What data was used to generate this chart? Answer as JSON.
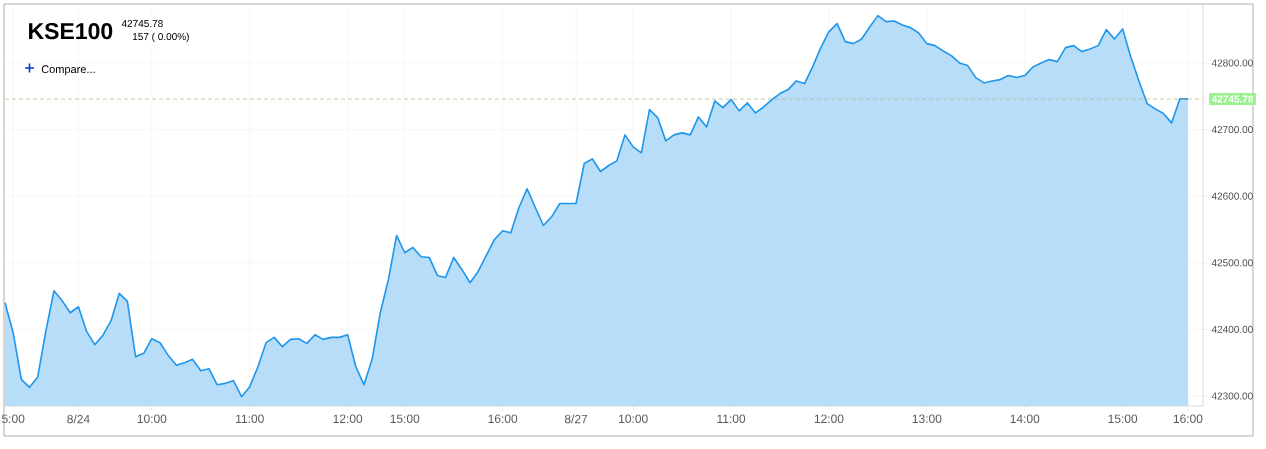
{
  "chart_data": {
    "type": "area",
    "title": "KSE100",
    "subtitle": "42745.78",
    "annotations": [
      "157 ( 0.00%)",
      "Compare..."
    ],
    "categories": [
      null,
      "5:00",
      null,
      null,
      null,
      null,
      null,
      null,
      null,
      "8/24",
      null,
      null,
      null,
      null,
      null,
      null,
      null,
      null,
      "10:00",
      null,
      null,
      null,
      null,
      null,
      null,
      null,
      null,
      null,
      null,
      null,
      "11:00",
      null,
      null,
      null,
      null,
      null,
      null,
      null,
      null,
      null,
      null,
      null,
      "12:00",
      null,
      null,
      null,
      null,
      null,
      null,
      "15:00",
      null,
      null,
      null,
      null,
      null,
      null,
      null,
      null,
      null,
      null,
      null,
      "16:00",
      null,
      null,
      null,
      null,
      null,
      null,
      null,
      null,
      "8/27",
      null,
      null,
      null,
      null,
      null,
      null,
      "10:00",
      null,
      null,
      null,
      null,
      null,
      null,
      null,
      null,
      null,
      null,
      null,
      "11:00",
      null,
      null,
      null,
      null,
      null,
      null,
      null,
      null,
      null,
      null,
      null,
      "12:00",
      null,
      null,
      null,
      null,
      null,
      null,
      null,
      null,
      null,
      null,
      null,
      "13:00",
      null,
      null,
      null,
      null,
      null,
      null,
      null,
      null,
      null,
      null,
      null,
      "14:00",
      null,
      null,
      null,
      null,
      null,
      null,
      null,
      null,
      null,
      null,
      null,
      "15:00",
      null,
      null,
      null,
      null,
      null,
      null,
      null,
      "16:00"
    ],
    "series": [
      {
        "color": "#1e96eb",
        "values": [
          42440,
          42395,
          42325,
          42313,
          42328,
          42397,
          42458,
          42443,
          42425,
          42434,
          42397,
          42377,
          42391,
          42413,
          42454,
          42442,
          42359,
          42364,
          42386,
          42380,
          42361,
          42346,
          42350,
          42355,
          42338,
          42341,
          42317,
          42319,
          42323,
          42299,
          42314,
          42344,
          42380,
          42388,
          42374,
          42385,
          42386,
          42379,
          42392,
          42385,
          42388,
          42388,
          42392,
          42344,
          42317,
          42355,
          42425,
          42475,
          42541,
          42515,
          42523,
          42509,
          42508,
          42481,
          42478,
          42508,
          42490,
          42470,
          42487,
          42511,
          42535,
          42548,
          42545,
          42583,
          42611,
          42583,
          42556,
          42569,
          42589,
          42589,
          42589,
          42649,
          42656,
          42637,
          42646,
          42653,
          42692,
          42674,
          42665,
          42730,
          42718,
          42683,
          42692,
          42695,
          42692,
          42719,
          42704,
          42743,
          42733,
          42745,
          42728,
          42740,
          42725,
          42734,
          42745,
          42754,
          42760,
          42773,
          42769,
          42794,
          42823,
          42847,
          42859,
          42832,
          42829,
          42836,
          42854,
          42871,
          42862,
          42863,
          42857,
          42853,
          42845,
          42829,
          42826,
          42818,
          42811,
          42800,
          42796,
          42778,
          42770,
          42773,
          42775,
          42781,
          42778,
          42781,
          42794,
          42800,
          42805,
          42802,
          42823,
          42826,
          42817,
          42821,
          42826,
          42850,
          42836,
          42851,
          42809,
          42773,
          42739,
          42731,
          42724,
          42710,
          42746,
          42746
        ]
      }
    ],
    "ylim": [
      42285,
      42887
    ],
    "yticks": [
      {
        "value": 42300,
        "label": "42300.00"
      },
      {
        "value": 42400,
        "label": "42400.00"
      },
      {
        "value": 42500,
        "label": "42500.00"
      },
      {
        "value": 42600,
        "label": "42600.00"
      },
      {
        "value": 42700,
        "label": "42700.00"
      },
      {
        "value": 42800,
        "label": "42800.00"
      }
    ],
    "grid": true,
    "ref_lines": [
      {
        "axis": "y",
        "value": 42745.78,
        "label": "42745.78",
        "color": "#b8b98a",
        "line_style": "dashed"
      }
    ]
  }
}
